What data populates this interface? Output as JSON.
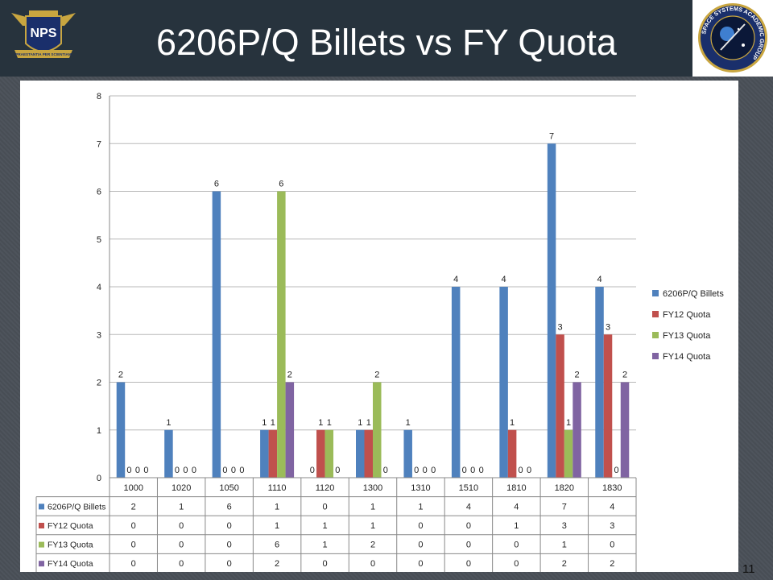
{
  "slide": {
    "title": "6206P/Q Billets vs FY Quota",
    "page_number": "11",
    "logo_left": {
      "text": "NPS",
      "motto": "PRAESTANTIA PER SCIENTIAM",
      "icon": "nps-shield-logo"
    },
    "logo_right": {
      "text": "SPACE SYSTEMS ACADEMIC GROUP",
      "icon": "space-systems-seal-logo"
    }
  },
  "chart_data": {
    "type": "bar",
    "categories": [
      "1000",
      "1020",
      "1050",
      "1110",
      "1120",
      "1300",
      "1310",
      "1510",
      "1810",
      "1820",
      "1830"
    ],
    "series": [
      {
        "name": "6206P/Q Billets",
        "values": [
          2,
          1,
          6,
          1,
          0,
          1,
          1,
          4,
          4,
          7,
          4
        ],
        "color": "#4f81bd"
      },
      {
        "name": "FY12 Quota",
        "values": [
          0,
          0,
          0,
          1,
          1,
          1,
          0,
          0,
          1,
          3,
          3
        ],
        "color": "#c0504d"
      },
      {
        "name": "FY13 Quota",
        "values": [
          0,
          0,
          0,
          6,
          1,
          2,
          0,
          0,
          0,
          1,
          0
        ],
        "color": "#9bbb59"
      },
      {
        "name": "FY14 Quota",
        "values": [
          0,
          0,
          0,
          2,
          0,
          0,
          0,
          0,
          0,
          2,
          2
        ],
        "color": "#8064a2"
      }
    ],
    "ylim": [
      0,
      8
    ],
    "yticks": [
      "0",
      "1",
      "2",
      "3",
      "4",
      "5",
      "6",
      "7",
      "8"
    ],
    "grid": true,
    "legend": "right",
    "data_table": true,
    "title": "",
    "xlabel": "",
    "ylabel": ""
  }
}
